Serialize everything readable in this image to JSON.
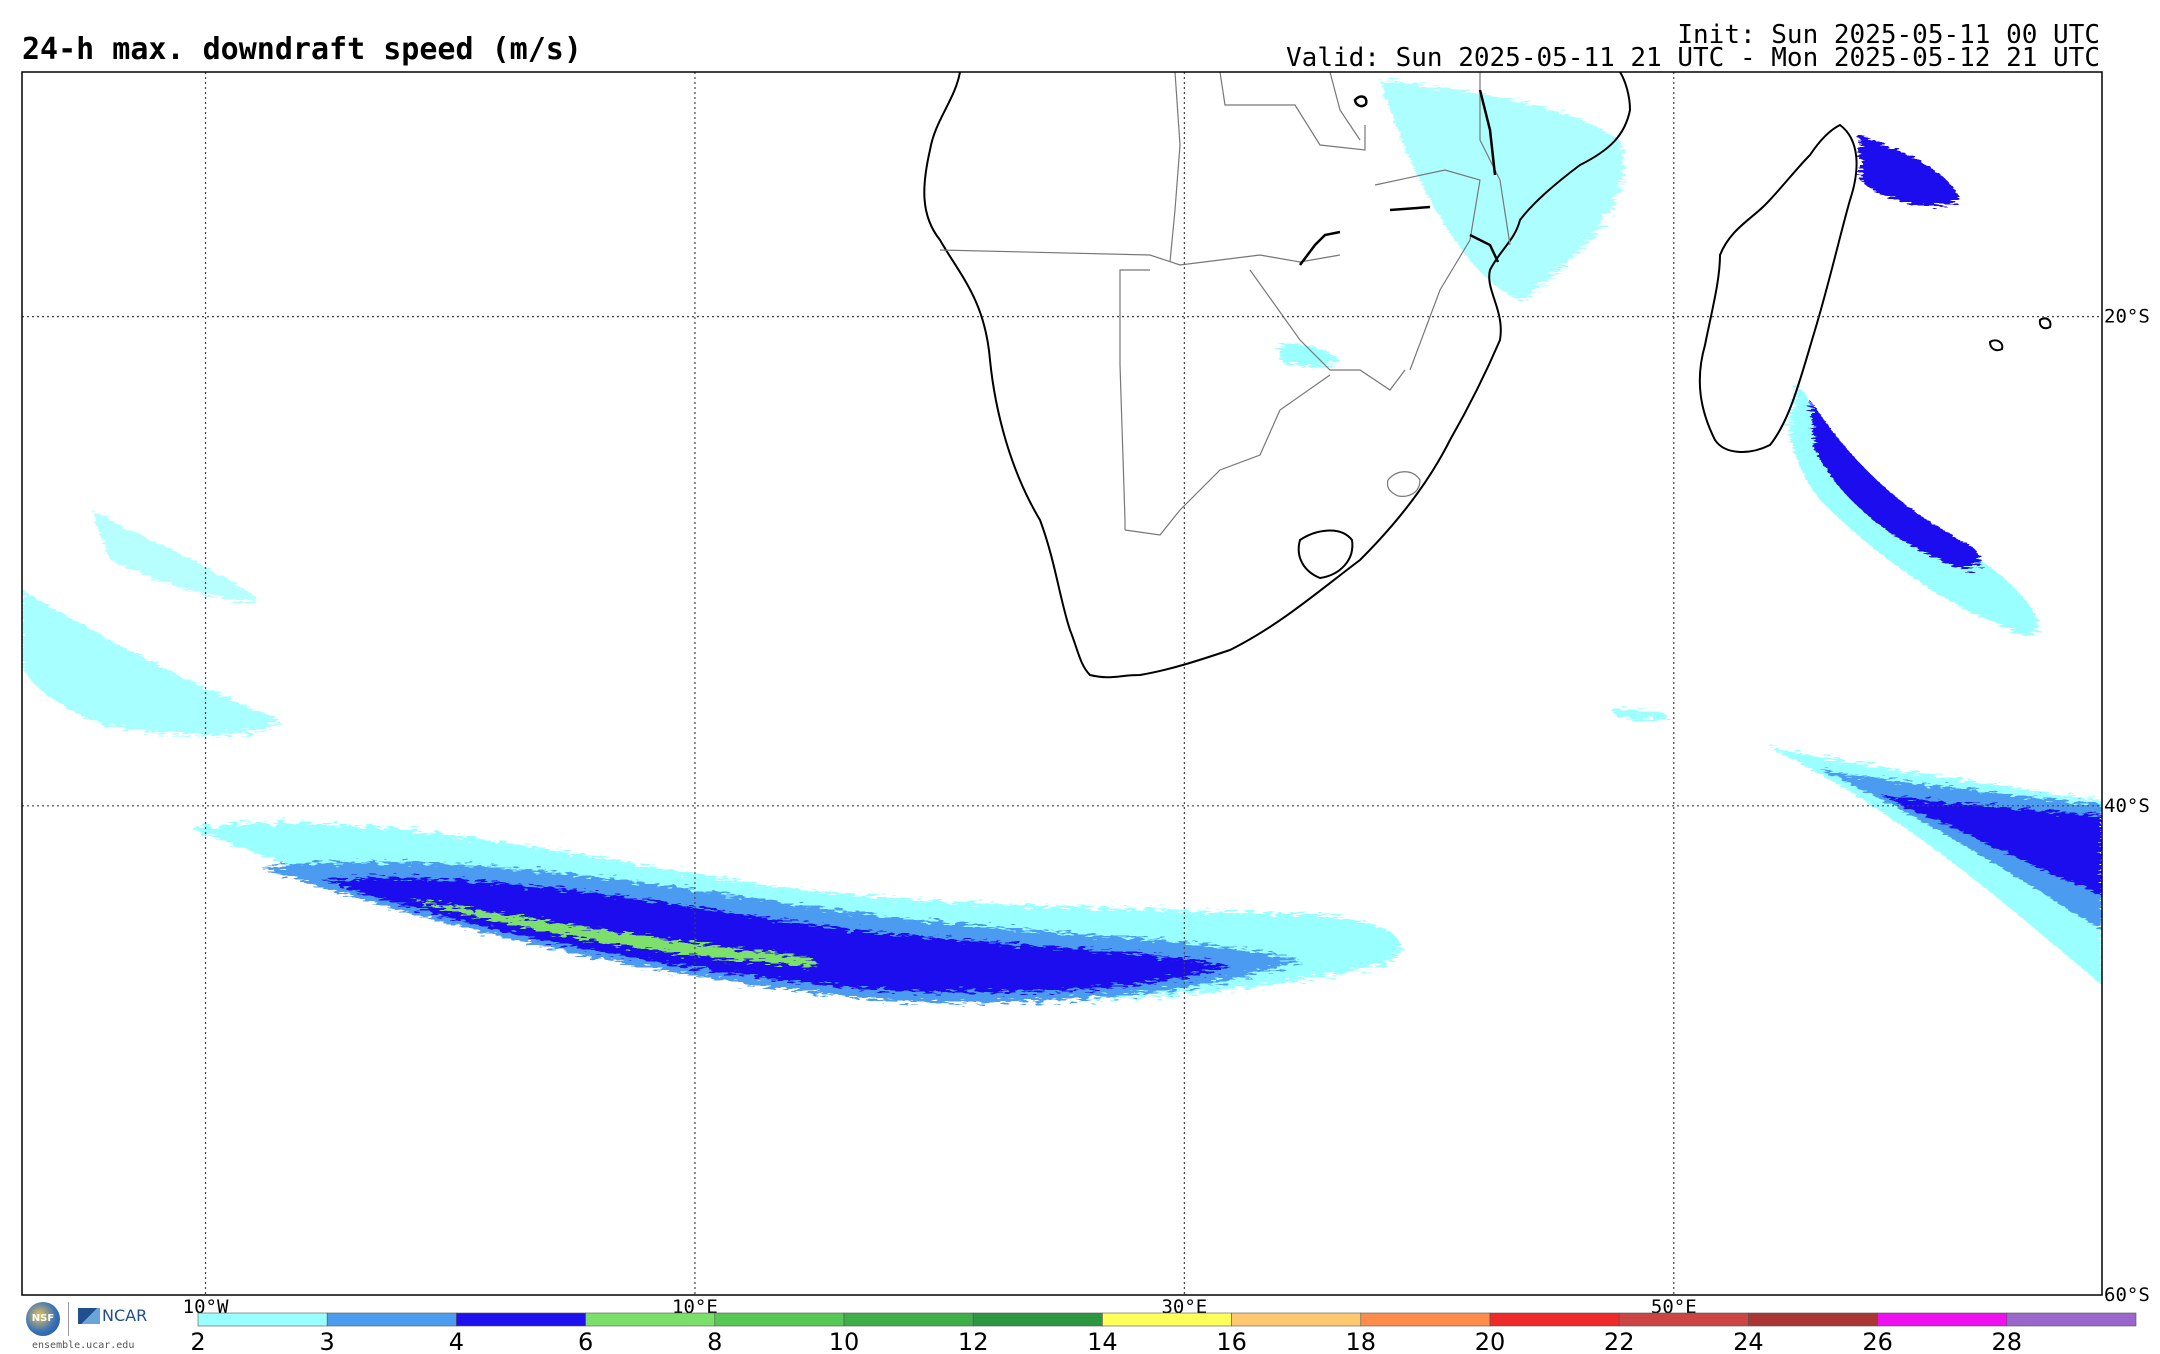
{
  "header": {
    "title": "24-h max. downdraft speed (m/s)",
    "init": "Init: Sun 2025-05-11 00 UTC",
    "valid": "Valid: Sun 2025-05-11 21 UTC - Mon 2025-05-12 21 UTC"
  },
  "map": {
    "lon_range": [
      -17.5,
      67.5
    ],
    "lat_range": [
      -60,
      -10
    ],
    "lon_labels": [
      "10°W",
      "10°E",
      "30°E",
      "50°E"
    ],
    "lon_values": [
      -10,
      10,
      30,
      50
    ],
    "lat_labels": [
      "20°S",
      "40°S",
      "60°S"
    ],
    "lat_values": [
      -20,
      -40,
      -60
    ],
    "grid": "dotted"
  },
  "legend": {
    "ticks": [
      "2",
      "3",
      "4",
      "6",
      "8",
      "10",
      "12",
      "14",
      "16",
      "18",
      "20",
      "22",
      "24",
      "26",
      "28"
    ],
    "colors": [
      "#99ffff",
      "#4c9cf0",
      "#1f10ee",
      "#7be06a",
      "#55c855",
      "#3fae48",
      "#2c9640",
      "#ffff5a",
      "#ffc870",
      "#ff8c4a",
      "#ee2a2a",
      "#cc4444",
      "#aa3535",
      "#ee10ee",
      "#9966cc"
    ]
  },
  "logos": {
    "nsf": "NSF",
    "ncar": "NCAR",
    "site": "ensemble.ucar.edu"
  }
}
